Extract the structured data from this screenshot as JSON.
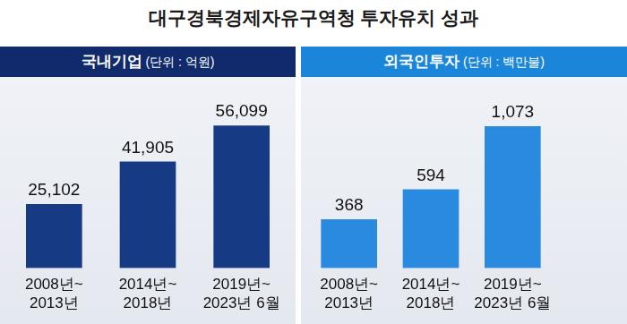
{
  "title": "대구경북경제자유구역청 투자유치 성과",
  "chart_data": [
    {
      "type": "bar",
      "title": "국내기업",
      "subtitle": "(단위 : 억원)",
      "categories": [
        [
          "2008년~",
          "2013년"
        ],
        [
          "2014년~",
          "2018년"
        ],
        [
          "2019년~",
          "2023년 6월"
        ]
      ],
      "values": [
        25102,
        41905,
        56099
      ],
      "value_labels": [
        "25,102",
        "41,905",
        "56,099"
      ],
      "color": "#173a85",
      "ylim": [
        0,
        62000
      ],
      "grid": false,
      "data_labels": true,
      "tick_labels": "x"
    },
    {
      "type": "bar",
      "title": "외국인투자",
      "subtitle": "(단위 : 백만불)",
      "categories": [
        [
          "2008년~",
          "2013년"
        ],
        [
          "2014년~",
          "2018년"
        ],
        [
          "2019년~",
          "2023년 6월"
        ]
      ],
      "values": [
        368,
        594,
        1073
      ],
      "value_labels": [
        "368",
        "594",
        "1,073"
      ],
      "color": "#2a8ae0",
      "ylim": [
        0,
        1190
      ],
      "grid": false,
      "data_labels": true,
      "tick_labels": "x"
    }
  ]
}
